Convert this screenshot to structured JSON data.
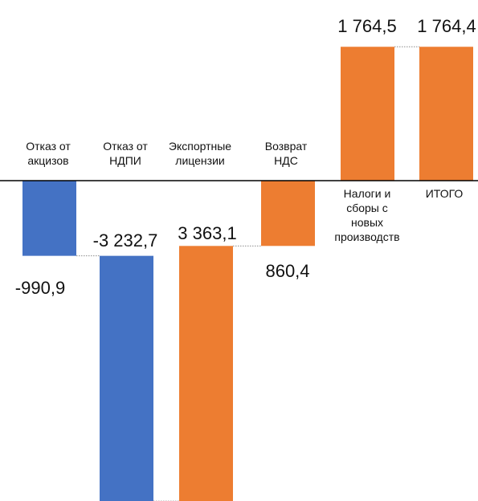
{
  "chart_data": {
    "type": "waterfall",
    "title": "",
    "xlabel": "",
    "ylabel": "",
    "ylim": [
      -4400,
      1900
    ],
    "colors": {
      "negative": "#4472c4",
      "positive": "#ed7d31",
      "connector": "#8c8c8c",
      "baseline": "#000000"
    },
    "bars": [
      {
        "category": [
          "Отказ от",
          "акцизов"
        ],
        "value": -990.9,
        "label": "-990,9",
        "kind": "negative"
      },
      {
        "category": [
          "Отказ от",
          "НДПИ"
        ],
        "value": -3232.7,
        "label": "-3 232,7",
        "kind": "negative"
      },
      {
        "category": [
          "Экспортные",
          "лицензии"
        ],
        "value": 3363.1,
        "label": "3 363,1",
        "kind": "positive"
      },
      {
        "category": [
          "Возврат",
          "НДС"
        ],
        "value": 860.4,
        "label": "860,4",
        "kind": "positive"
      },
      {
        "category": [
          "Налоги и",
          "сборы с",
          "новых",
          "производств"
        ],
        "value": 1764.5,
        "label": "1 764,5",
        "kind": "positive"
      },
      {
        "category": [
          "ИТОГО"
        ],
        "value": 1764.4,
        "label": "1 764,4",
        "kind": "total"
      }
    ]
  }
}
